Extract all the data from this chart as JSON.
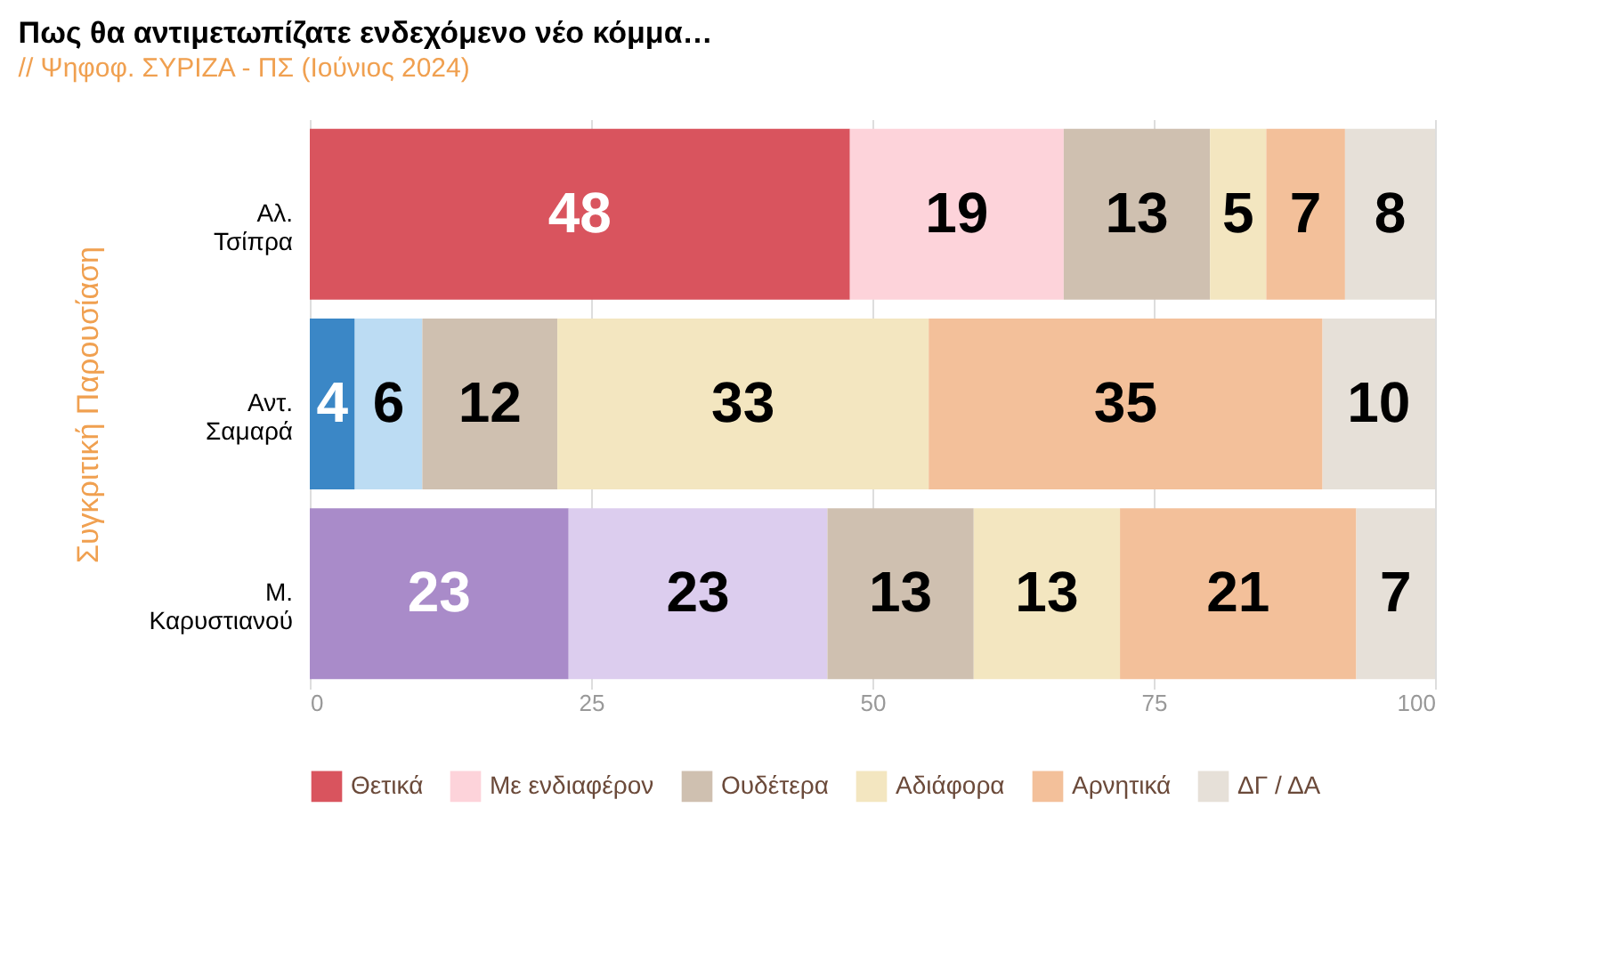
{
  "chart_data": {
    "type": "bar",
    "orientation": "horizontal",
    "stacked": true,
    "title": "Πως θα αντιμετωπίζατε ενδεχόμενο νέο κόμμα…",
    "subtitle": "// Ψηφοφ. ΣΥΡΙΖΑ - ΠΣ  (Ιούνιος 2024)",
    "ylabel": "Συγκριτική  Παρουσίαση",
    "categories": [
      "Αλ. Τσίπρα",
      "Αντ. Σαμαρά",
      "Μ. Καρυστιανού"
    ],
    "series": [
      {
        "name": "Θετικά",
        "color": "#d9545e",
        "colors": [
          "#d9545e",
          "#3b87c6",
          "#a98bc9"
        ],
        "values": [
          48,
          4,
          23
        ]
      },
      {
        "name": "Με ενδιαφέρον",
        "color": "#fdd3da",
        "colors": [
          "#fdd3da",
          "#bcdcf3",
          "#dccdee"
        ],
        "values": [
          19,
          6,
          23
        ]
      },
      {
        "name": "Ουδέτερα",
        "color": "#cfc0b0",
        "values": [
          13,
          12,
          13
        ]
      },
      {
        "name": "Αδιάφορα",
        "color": "#f3e6c0",
        "values": [
          5,
          33,
          13
        ]
      },
      {
        "name": "Αρνητικά",
        "color": "#f3c09a",
        "values": [
          7,
          35,
          21
        ]
      },
      {
        "name": "ΔΓ / ΔΑ",
        "color": "#e6e0d8",
        "values": [
          8,
          10,
          7
        ]
      }
    ],
    "xlim": [
      0,
      100
    ],
    "xticks": [
      0,
      25,
      50,
      75,
      100
    ],
    "grid": "x",
    "legend": "bottom",
    "data_labels": true
  }
}
